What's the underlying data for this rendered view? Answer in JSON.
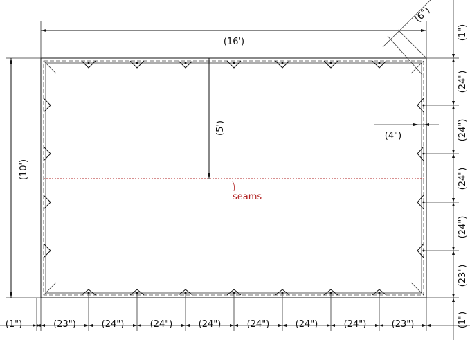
{
  "overall": {
    "width_label": "(16')",
    "height_label": "(10')",
    "seam_offset_label": "(5')",
    "corner_label": "(6\")",
    "grommet_inset_label": "(4\")"
  },
  "seam": {
    "label": "seams",
    "color": "#b22222"
  },
  "bottom_dims": [
    "(1\")",
    "(23\")",
    "(24\")",
    "(24\")",
    "(24\")",
    "(24\")",
    "(24\")",
    "(24\")",
    "(23\")"
  ],
  "right_dims": [
    "(1\")",
    "(24\")",
    "(24\")",
    "(24\")",
    "(24\")",
    "(23\")",
    "(1\")"
  ]
}
